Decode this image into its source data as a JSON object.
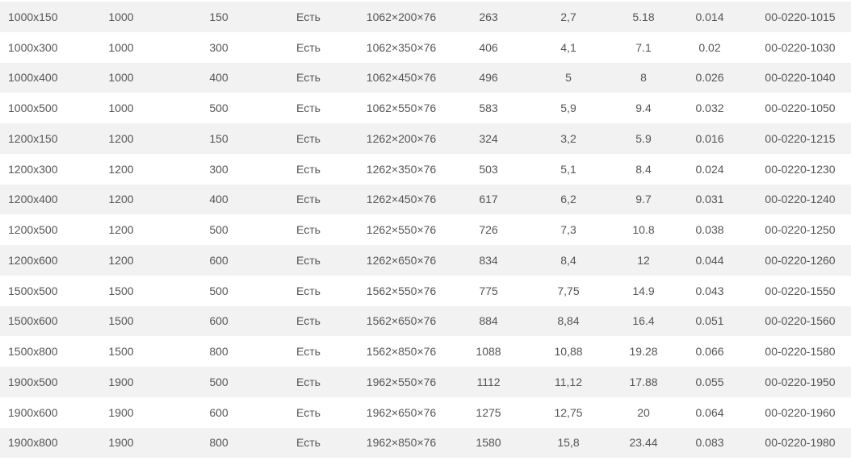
{
  "table": {
    "rows": [
      [
        "1000x150",
        "1000",
        "150",
        "Есть",
        "1062×200×76",
        "263",
        "2,7",
        "5.18",
        "0.014",
        "00-0220-1015"
      ],
      [
        "1000x300",
        "1000",
        "300",
        "Есть",
        "1062×350×76",
        "406",
        "4,1",
        "7.1",
        "0.02",
        "00-0220-1030"
      ],
      [
        "1000x400",
        "1000",
        "400",
        "Есть",
        "1062×450×76",
        "496",
        "5",
        "8",
        "0.026",
        "00-0220-1040"
      ],
      [
        "1000x500",
        "1000",
        "500",
        "Есть",
        "1062×550×76",
        "583",
        "5,9",
        "9.4",
        "0.032",
        "00-0220-1050"
      ],
      [
        "1200x150",
        "1200",
        "150",
        "Есть",
        "1262×200×76",
        "324",
        "3,2",
        "5.9",
        "0.016",
        "00-0220-1215"
      ],
      [
        "1200x300",
        "1200",
        "300",
        "Есть",
        "1262×350×76",
        "503",
        "5,1",
        "8.4",
        "0.024",
        "00-0220-1230"
      ],
      [
        "1200x400",
        "1200",
        "400",
        "Есть",
        "1262×450×76",
        "617",
        "6,2",
        "9.7",
        "0.031",
        "00-0220-1240"
      ],
      [
        "1200x500",
        "1200",
        "500",
        "Есть",
        "1262×550×76",
        "726",
        "7,3",
        "10.8",
        "0.038",
        "00-0220-1250"
      ],
      [
        "1200x600",
        "1200",
        "600",
        "Есть",
        "1262×650×76",
        "834",
        "8,4",
        "12",
        "0.044",
        "00-0220-1260"
      ],
      [
        "1500x500",
        "1500",
        "500",
        "Есть",
        "1562×550×76",
        "775",
        "7,75",
        "14.9",
        "0.043",
        "00-0220-1550"
      ],
      [
        "1500x600",
        "1500",
        "600",
        "Есть",
        "1562×650×76",
        "884",
        "8,84",
        "16.4",
        "0.051",
        "00-0220-1560"
      ],
      [
        "1500x800",
        "1500",
        "800",
        "Есть",
        "1562×850×76",
        "1088",
        "10,88",
        "19.28",
        "0.066",
        "00-0220-1580"
      ],
      [
        "1900x500",
        "1900",
        "500",
        "Есть",
        "1962×550×76",
        "1112",
        "11,12",
        "17.88",
        "0.055",
        "00-0220-1950"
      ],
      [
        "1900x600",
        "1900",
        "600",
        "Есть",
        "1962×650×76",
        "1275",
        "12,75",
        "20",
        "0.064",
        "00-0220-1960"
      ],
      [
        "1900x800",
        "1900",
        "800",
        "Есть",
        "1962×850×76",
        "1580",
        "15,8",
        "23.44",
        "0.083",
        "00-0220-1980"
      ]
    ]
  },
  "colors": {
    "stripe": "#f2f2f2",
    "text": "#555555"
  }
}
